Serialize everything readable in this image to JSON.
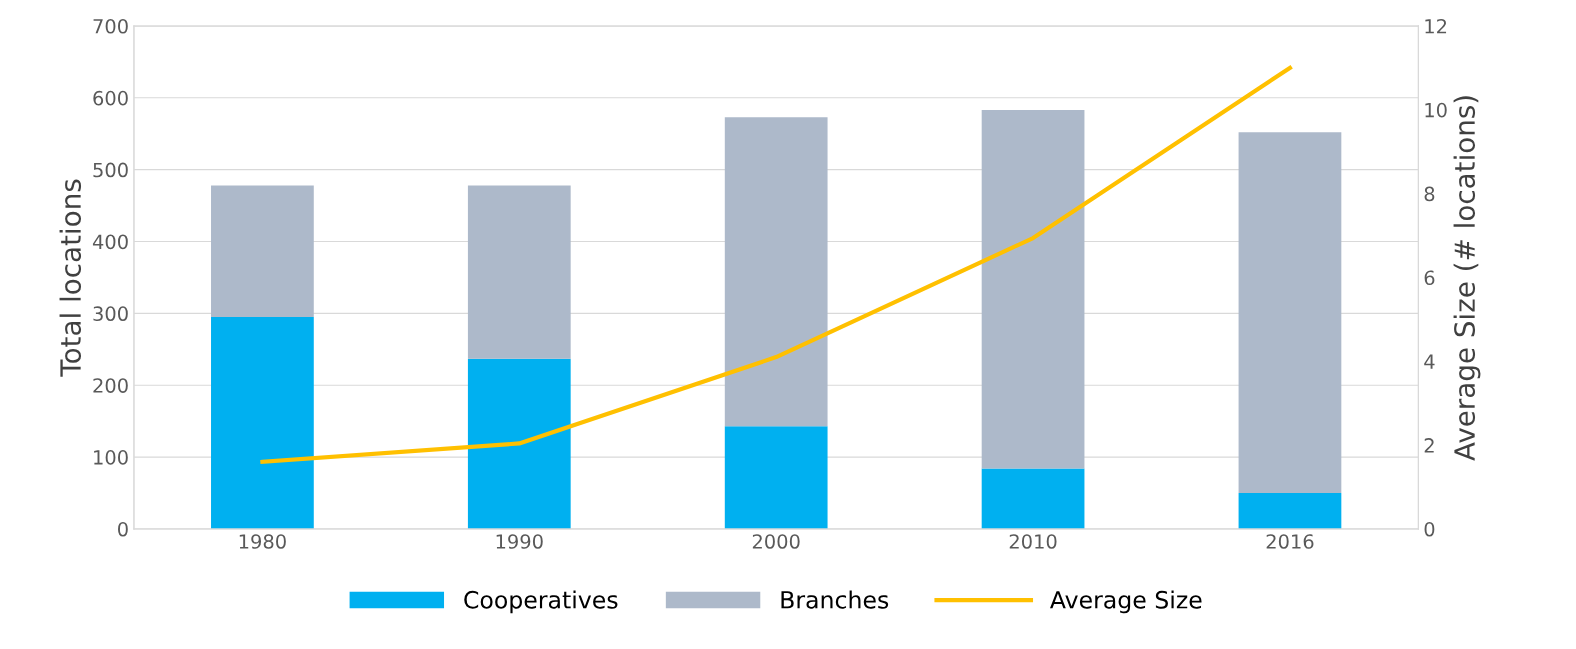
{
  "chart_data": {
    "type": "bar",
    "stacked": true,
    "ylabel": "Total locations",
    "y2label": "Average Size (# locations)",
    "categories": [
      "1980",
      "1990",
      "2000",
      "2010",
      "2016"
    ],
    "series": [
      {
        "name": "Cooperatives",
        "color": "#00b0f0",
        "values": [
          295,
          237,
          143,
          84,
          50
        ]
      },
      {
        "name": "Branches",
        "color": "#adb9ca",
        "values": [
          183,
          241,
          430,
          499,
          502
        ]
      },
      {
        "name": "Average Size",
        "type": "line",
        "axis": "y2",
        "color": "#ffc000",
        "values": [
          1.6,
          2.04,
          4.1,
          6.94,
          11.0
        ]
      }
    ],
    "ylim": [
      0,
      700
    ],
    "yticks": [
      0,
      100,
      200,
      300,
      400,
      500,
      600,
      700
    ],
    "y2lim": [
      0,
      12
    ],
    "y2ticks": [
      0,
      2,
      4,
      6,
      8,
      10,
      12
    ],
    "grid": "y",
    "legend": "bottom",
    "marker": "none",
    "line_style": "solid"
  }
}
